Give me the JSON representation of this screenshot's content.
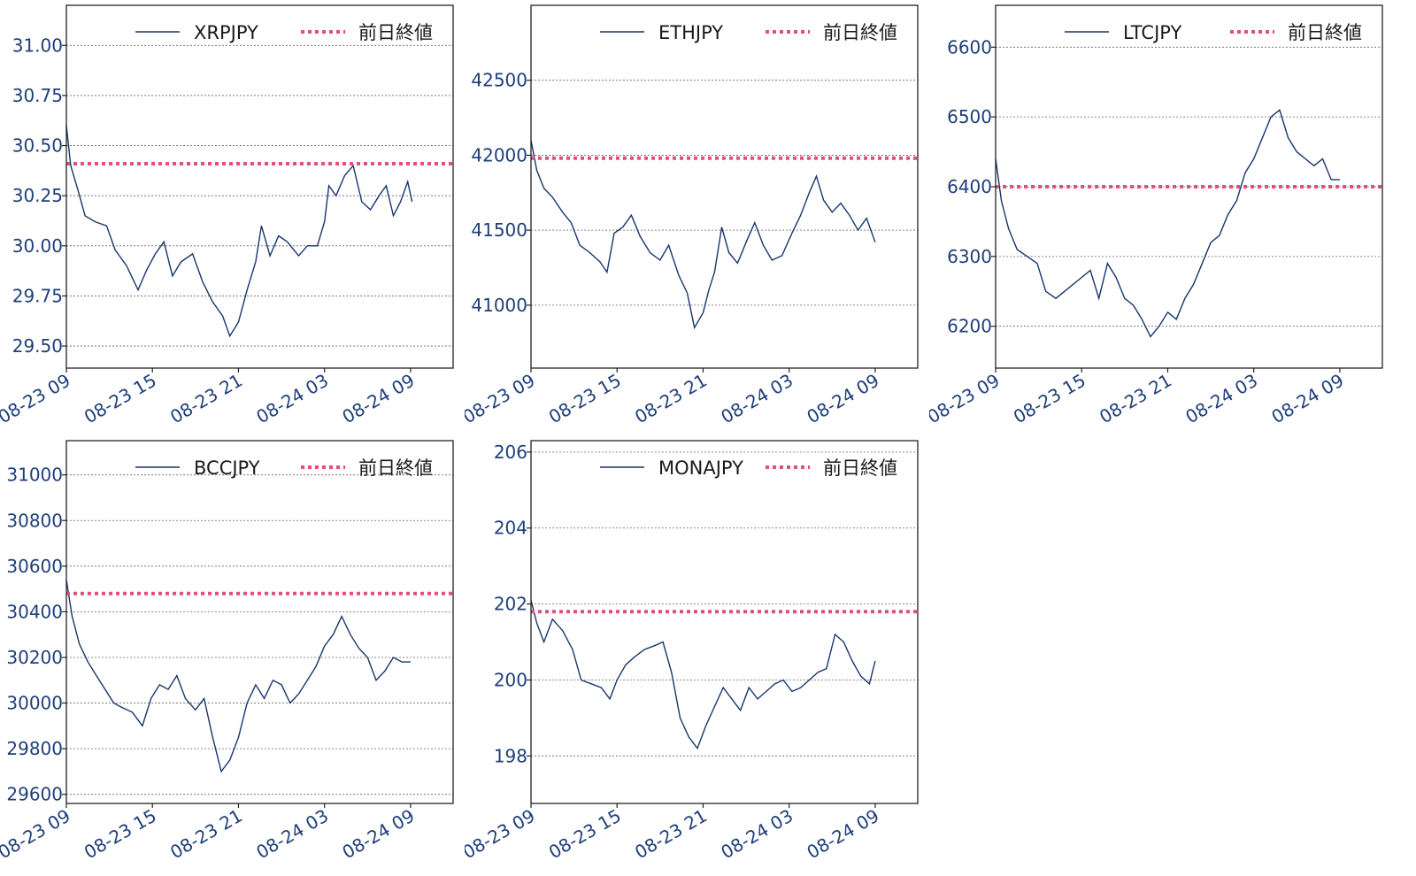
{
  "legend_ref_label": "前日終値",
  "colors": {
    "price": "#17366b",
    "ref": "#e0507a",
    "tick_text": "#1f3f7a"
  },
  "chart_data": [
    {
      "type": "line",
      "title": "",
      "series_name": "XRPJPY",
      "x_ticks": [
        "08-23 09",
        "08-23 15",
        "08-23 21",
        "08-24 03",
        "08-24 09"
      ],
      "ylim": [
        29.39,
        31.2
      ],
      "y_ticks": [
        "29.50",
        "29.75",
        "30.00",
        "30.25",
        "30.50",
        "30.75",
        "31.00"
      ],
      "y_tick_values": [
        29.5,
        29.75,
        30.0,
        30.25,
        30.5,
        30.75,
        31.0
      ],
      "ref_value": 30.41,
      "grid": true,
      "legend": "top-right",
      "series": [
        [
          0,
          30.6
        ],
        [
          0.3,
          30.4
        ],
        [
          0.8,
          30.28
        ],
        [
          1.3,
          30.15
        ],
        [
          2,
          30.12
        ],
        [
          2.8,
          30.1
        ],
        [
          3.4,
          29.98
        ],
        [
          4.2,
          29.9
        ],
        [
          5,
          29.78
        ],
        [
          5.6,
          29.88
        ],
        [
          6.2,
          29.96
        ],
        [
          6.8,
          30.02
        ],
        [
          7.4,
          29.85
        ],
        [
          8,
          29.92
        ],
        [
          8.8,
          29.96
        ],
        [
          9.5,
          29.82
        ],
        [
          10.2,
          29.72
        ],
        [
          10.9,
          29.65
        ],
        [
          11.4,
          29.55
        ],
        [
          12,
          29.62
        ],
        [
          12.6,
          29.78
        ],
        [
          13.2,
          29.92
        ],
        [
          13.6,
          30.1
        ],
        [
          14.2,
          29.95
        ],
        [
          14.8,
          30.05
        ],
        [
          15.4,
          30.02
        ],
        [
          16.2,
          29.95
        ],
        [
          16.8,
          30.0
        ],
        [
          17.5,
          30.0
        ],
        [
          18,
          30.12
        ],
        [
          18.3,
          30.3
        ],
        [
          18.8,
          30.25
        ],
        [
          19.4,
          30.35
        ],
        [
          20,
          30.4
        ],
        [
          20.6,
          30.22
        ],
        [
          21.2,
          30.18
        ],
        [
          21.8,
          30.25
        ],
        [
          22.3,
          30.3
        ],
        [
          22.8,
          30.15
        ],
        [
          23.3,
          30.22
        ],
        [
          23.8,
          30.32
        ],
        [
          24.1,
          30.22
        ]
      ]
    },
    {
      "type": "line",
      "title": "",
      "series_name": "ETHJPY",
      "x_ticks": [
        "08-23 09",
        "08-23 15",
        "08-23 21",
        "08-24 03",
        "08-24 09"
      ],
      "ylim": [
        40580,
        43000
      ],
      "y_ticks": [
        "41000",
        "41500",
        "42000",
        "42500"
      ],
      "y_tick_values": [
        41000,
        41500,
        42000,
        42500
      ],
      "ref_value": 41980,
      "grid": true,
      "legend": "top-right",
      "series": [
        [
          0,
          42100
        ],
        [
          0.4,
          41900
        ],
        [
          0.9,
          41780
        ],
        [
          1.5,
          41720
        ],
        [
          2.2,
          41620
        ],
        [
          2.8,
          41550
        ],
        [
          3.4,
          41400
        ],
        [
          4.1,
          41350
        ],
        [
          4.8,
          41290
        ],
        [
          5.3,
          41220
        ],
        [
          5.8,
          41480
        ],
        [
          6.4,
          41520
        ],
        [
          7,
          41600
        ],
        [
          7.6,
          41460
        ],
        [
          8.3,
          41350
        ],
        [
          9,
          41300
        ],
        [
          9.6,
          41400
        ],
        [
          10.3,
          41200
        ],
        [
          10.9,
          41080
        ],
        [
          11.4,
          40850
        ],
        [
          12,
          40950
        ],
        [
          12.4,
          41100
        ],
        [
          12.8,
          41220
        ],
        [
          13.3,
          41520
        ],
        [
          13.8,
          41350
        ],
        [
          14.4,
          41280
        ],
        [
          15,
          41420
        ],
        [
          15.6,
          41550
        ],
        [
          16.2,
          41400
        ],
        [
          16.8,
          41300
        ],
        [
          17.5,
          41330
        ],
        [
          18.2,
          41480
        ],
        [
          18.8,
          41600
        ],
        [
          19.4,
          41750
        ],
        [
          19.9,
          41860
        ],
        [
          20.4,
          41700
        ],
        [
          21,
          41620
        ],
        [
          21.6,
          41680
        ],
        [
          22.2,
          41600
        ],
        [
          22.8,
          41500
        ],
        [
          23.4,
          41580
        ],
        [
          24,
          41420
        ]
      ]
    },
    {
      "type": "line",
      "title": "",
      "series_name": "LTCJPY",
      "x_ticks": [
        "08-23 09",
        "08-23 15",
        "08-23 21",
        "08-24 03",
        "08-24 09"
      ],
      "ylim": [
        6140,
        6660
      ],
      "y_ticks": [
        "6200",
        "6300",
        "6400",
        "6500",
        "6600"
      ],
      "y_tick_values": [
        6200,
        6300,
        6400,
        6500,
        6600
      ],
      "ref_value": 6400,
      "grid": true,
      "legend": "top-right",
      "series": [
        [
          0,
          6440
        ],
        [
          0.4,
          6380
        ],
        [
          0.9,
          6340
        ],
        [
          1.5,
          6310
        ],
        [
          2.2,
          6300
        ],
        [
          2.9,
          6290
        ],
        [
          3.5,
          6250
        ],
        [
          4.2,
          6240
        ],
        [
          4.8,
          6250
        ],
        [
          5.4,
          6260
        ],
        [
          6,
          6270
        ],
        [
          6.6,
          6280
        ],
        [
          7.2,
          6240
        ],
        [
          7.8,
          6290
        ],
        [
          8.4,
          6270
        ],
        [
          9,
          6240
        ],
        [
          9.6,
          6230
        ],
        [
          10.2,
          6210
        ],
        [
          10.8,
          6185
        ],
        [
          11.4,
          6200
        ],
        [
          12,
          6220
        ],
        [
          12.6,
          6210
        ],
        [
          13.2,
          6240
        ],
        [
          13.8,
          6260
        ],
        [
          14.4,
          6290
        ],
        [
          15,
          6320
        ],
        [
          15.6,
          6330
        ],
        [
          16.2,
          6360
        ],
        [
          16.8,
          6380
        ],
        [
          17.4,
          6420
        ],
        [
          18,
          6440
        ],
        [
          18.6,
          6470
        ],
        [
          19.2,
          6500
        ],
        [
          19.8,
          6510
        ],
        [
          20.4,
          6470
        ],
        [
          21,
          6450
        ],
        [
          21.6,
          6440
        ],
        [
          22.2,
          6430
        ],
        [
          22.8,
          6440
        ],
        [
          23.4,
          6410
        ],
        [
          24,
          6410
        ]
      ]
    },
    {
      "type": "line",
      "title": "",
      "series_name": "BCCJPY",
      "x_ticks": [
        "08-23 09",
        "08-23 15",
        "08-23 21",
        "08-24 03",
        "08-24 09"
      ],
      "ylim": [
        29560,
        31150
      ],
      "y_ticks": [
        "29600",
        "29800",
        "30000",
        "30200",
        "30400",
        "30600",
        "30800",
        "31000"
      ],
      "y_tick_values": [
        29600,
        29800,
        30000,
        30200,
        30400,
        30600,
        30800,
        31000
      ],
      "ref_value": 30480,
      "grid": true,
      "legend": "top-right",
      "series": [
        [
          0,
          30540
        ],
        [
          0.4,
          30380
        ],
        [
          0.9,
          30260
        ],
        [
          1.5,
          30180
        ],
        [
          2.1,
          30120
        ],
        [
          2.7,
          30060
        ],
        [
          3.3,
          30000
        ],
        [
          3.9,
          29980
        ],
        [
          4.6,
          29960
        ],
        [
          5.3,
          29900
        ],
        [
          5.9,
          30020
        ],
        [
          6.5,
          30080
        ],
        [
          7.1,
          30060
        ],
        [
          7.7,
          30120
        ],
        [
          8.3,
          30020
        ],
        [
          9,
          29970
        ],
        [
          9.6,
          30020
        ],
        [
          10.2,
          29850
        ],
        [
          10.8,
          29700
        ],
        [
          11.4,
          29750
        ],
        [
          12,
          29850
        ],
        [
          12.6,
          30000
        ],
        [
          13.2,
          30080
        ],
        [
          13.8,
          30020
        ],
        [
          14.4,
          30100
        ],
        [
          15,
          30080
        ],
        [
          15.6,
          30000
        ],
        [
          16.2,
          30040
        ],
        [
          16.8,
          30100
        ],
        [
          17.4,
          30160
        ],
        [
          18,
          30250
        ],
        [
          18.6,
          30300
        ],
        [
          19.2,
          30380
        ],
        [
          19.8,
          30300
        ],
        [
          20.4,
          30240
        ],
        [
          21,
          30200
        ],
        [
          21.6,
          30100
        ],
        [
          22.2,
          30140
        ],
        [
          22.8,
          30200
        ],
        [
          23.4,
          30180
        ],
        [
          24,
          30180
        ]
      ]
    },
    {
      "type": "line",
      "title": "",
      "series_name": "MONAJPY",
      "x_ticks": [
        "08-23 09",
        "08-23 15",
        "08-23 21",
        "08-24 03",
        "08-24 09"
      ],
      "ylim": [
        196.75,
        206.3
      ],
      "y_ticks": [
        "198",
        "200",
        "202",
        "204",
        "206"
      ],
      "y_tick_values": [
        198,
        200,
        202,
        204,
        206
      ],
      "ref_value": 201.8,
      "grid": true,
      "legend": "top-right",
      "series": [
        [
          0,
          202.1
        ],
        [
          0.4,
          201.5
        ],
        [
          0.9,
          201.0
        ],
        [
          1.5,
          201.6
        ],
        [
          2.2,
          201.3
        ],
        [
          2.9,
          200.8
        ],
        [
          3.5,
          200.0
        ],
        [
          4.2,
          199.9
        ],
        [
          4.9,
          199.8
        ],
        [
          5.5,
          199.5
        ],
        [
          6,
          200.0
        ],
        [
          6.6,
          200.4
        ],
        [
          7.2,
          200.6
        ],
        [
          7.9,
          200.8
        ],
        [
          8.6,
          200.9
        ],
        [
          9.2,
          201.0
        ],
        [
          9.8,
          200.2
        ],
        [
          10.4,
          199.0
        ],
        [
          11,
          198.5
        ],
        [
          11.6,
          198.2
        ],
        [
          12.2,
          198.8
        ],
        [
          12.8,
          199.3
        ],
        [
          13.4,
          199.8
        ],
        [
          14,
          199.5
        ],
        [
          14.6,
          199.2
        ],
        [
          15.2,
          199.8
        ],
        [
          15.8,
          199.5
        ],
        [
          16.4,
          199.7
        ],
        [
          17,
          199.9
        ],
        [
          17.6,
          200.0
        ],
        [
          18.2,
          199.7
        ],
        [
          18.8,
          199.8
        ],
        [
          19.4,
          200.0
        ],
        [
          20,
          200.2
        ],
        [
          20.6,
          200.3
        ],
        [
          21.2,
          201.2
        ],
        [
          21.8,
          201.0
        ],
        [
          22.4,
          200.5
        ],
        [
          23,
          200.1
        ],
        [
          23.6,
          199.9
        ],
        [
          24,
          200.5
        ]
      ]
    }
  ]
}
